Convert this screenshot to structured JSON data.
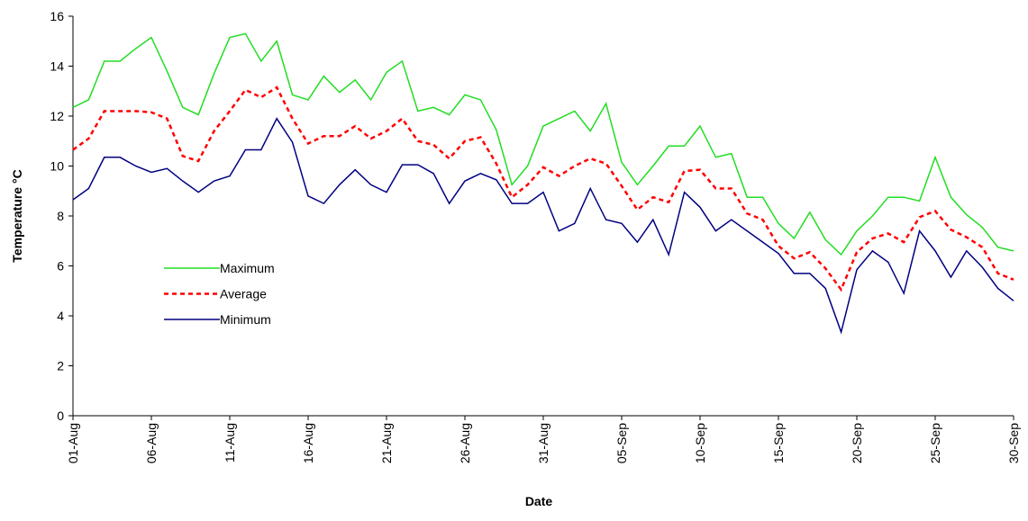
{
  "chart_data": {
    "type": "line",
    "x_label": "Date",
    "y_label": "Temperature °C",
    "categories": [
      "01-Aug",
      null,
      null,
      null,
      null,
      "06-Aug",
      null,
      null,
      null,
      null,
      "11-Aug",
      null,
      null,
      null,
      null,
      "16-Aug",
      null,
      null,
      null,
      null,
      "21-Aug",
      null,
      null,
      null,
      null,
      "26-Aug",
      null,
      null,
      null,
      null,
      "31-Aug",
      null,
      null,
      null,
      null,
      "05-Sep",
      null,
      null,
      null,
      null,
      "10-Sep",
      null,
      null,
      null,
      null,
      "15-Sep",
      null,
      null,
      null,
      null,
      "20-Sep",
      null,
      null,
      null,
      null,
      "25-Sep",
      null,
      null,
      null,
      null,
      "30-Sep"
    ],
    "series": [
      {
        "name": "Maximum",
        "color": "#22dd22",
        "dash": false,
        "values": [
          12.35,
          12.65,
          14.2,
          14.2,
          14.7,
          15.15,
          13.8,
          12.35,
          12.05,
          13.7,
          15.15,
          15.3,
          14.2,
          15.0,
          12.85,
          12.65,
          13.6,
          12.95,
          13.45,
          12.65,
          13.75,
          14.2,
          12.2,
          12.35,
          12.05,
          12.85,
          12.65,
          11.45,
          9.25,
          10.0,
          11.6,
          11.9,
          12.2,
          11.4,
          12.5,
          10.15,
          9.25,
          10.0,
          10.8,
          10.8,
          11.6,
          10.35,
          10.5,
          8.75,
          8.75,
          7.7,
          7.1,
          8.15,
          7.05,
          6.45,
          7.4,
          8.0,
          8.75,
          8.75,
          8.6,
          10.35,
          8.75,
          8.05,
          7.55,
          6.75,
          6.6
        ]
      },
      {
        "name": "Average",
        "color": "#ff0000",
        "dash": true,
        "values": [
          10.65,
          11.1,
          12.2,
          12.2,
          12.2,
          12.15,
          11.9,
          10.4,
          10.2,
          11.4,
          12.2,
          13.05,
          12.75,
          13.15,
          11.9,
          10.9,
          11.2,
          11.2,
          11.6,
          11.1,
          11.4,
          11.9,
          11.0,
          10.85,
          10.3,
          11.0,
          11.15,
          10.1,
          8.75,
          9.25,
          9.95,
          9.6,
          10.0,
          10.3,
          10.1,
          9.2,
          8.25,
          8.75,
          8.55,
          9.8,
          9.85,
          9.1,
          9.1,
          8.1,
          7.85,
          6.8,
          6.3,
          6.55,
          5.9,
          5.05,
          6.55,
          7.1,
          7.3,
          6.95,
          7.95,
          8.2,
          7.45,
          7.15,
          6.75,
          5.7,
          5.45
        ]
      },
      {
        "name": "Minimum",
        "color": "#000080",
        "dash": false,
        "values": [
          8.65,
          9.1,
          10.35,
          10.35,
          10.0,
          9.75,
          9.9,
          9.4,
          8.95,
          9.4,
          9.6,
          10.65,
          10.65,
          11.9,
          10.95,
          8.8,
          8.5,
          9.25,
          9.85,
          9.25,
          8.95,
          10.05,
          10.05,
          9.7,
          8.5,
          9.4,
          9.7,
          9.45,
          8.5,
          8.5,
          8.95,
          7.4,
          7.7,
          9.1,
          7.85,
          7.7,
          6.95,
          7.85,
          6.45,
          8.95,
          8.35,
          7.4,
          7.85,
          7.4,
          6.95,
          6.5,
          5.7,
          5.7,
          5.1,
          3.35,
          5.85,
          6.6,
          6.15,
          4.9,
          7.4,
          6.6,
          5.55,
          6.6,
          5.95,
          5.1,
          4.6
        ]
      }
    ],
    "ylim": [
      0,
      16
    ],
    "yticks": [
      0,
      2,
      4,
      6,
      8,
      10,
      12,
      14,
      16
    ],
    "grid": false,
    "legend": "center-left"
  }
}
